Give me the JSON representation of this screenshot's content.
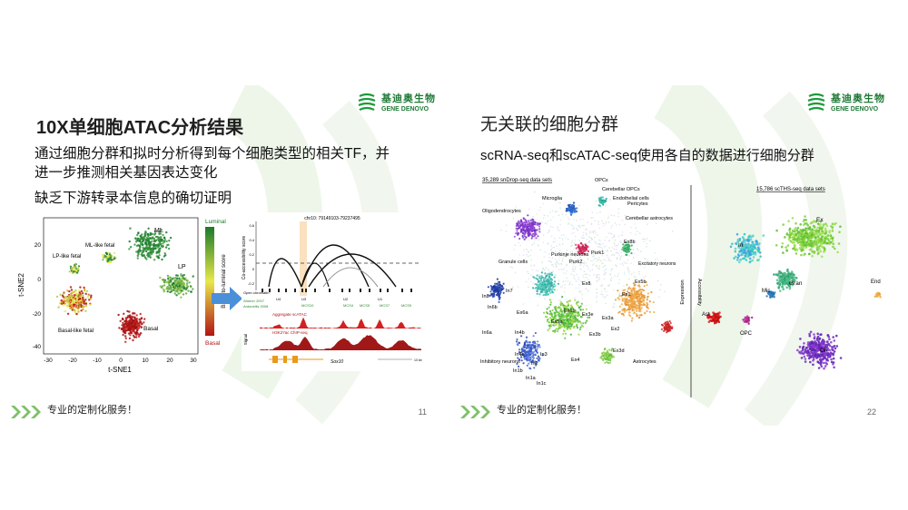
{
  "left": {
    "logo_cn": "基迪奥生物",
    "logo_en": "GENE DENOVO",
    "title": "10X单细胞ATAC分析结果",
    "line1": "通过细胞分群和拟时分析得到每个细胞类型的相关TF，并",
    "line2": "进一步推测相关基因表达变化",
    "line3": "缺乏下游转录本信息的确切证明",
    "footer": "专业的定制化服务！",
    "page": "11",
    "tsne": {
      "ylabel": "t-SNE2",
      "xlabel": "t-SNE1",
      "xticks": [
        "-30",
        "-20",
        "-10",
        "0",
        "10",
        "20",
        "30"
      ],
      "yticks": [
        "20",
        "0",
        "-20",
        "-40"
      ],
      "clusters": [
        "ML",
        "ML-like fetal",
        "LP-like fetal",
        "LP",
        "Basal-like fetal",
        "Basal"
      ],
      "colorbar_top": "Luminal",
      "colorbar_bottom": "Basal",
      "colorbar_label": "Basal-to-luminal score",
      "colors": {
        "luminal": "#1a7a2a",
        "mid": "#e8e84a",
        "basal": "#b21414"
      }
    },
    "track": {
      "coords": "chr10: 79149103-79237495",
      "ylabel": "Co-accessibility score",
      "open_label": "Open chromatin",
      "warner": "Warner 2007",
      "antonellis": "Antonellis 2008",
      "agg_label": "Aggregate scATAC",
      "h3k_label": "H3K27ac ChIP-seq",
      "signal_label": "Signal",
      "gene": "Sox10",
      "scale": "10 kb",
      "elements": [
        "U4",
        "U3",
        "U2",
        "U1"
      ],
      "mcs": [
        "MCS10",
        "MCS4",
        "MCS5",
        "MCS7",
        "MCS9"
      ],
      "yticks": [
        "0.6",
        "0.4",
        "0.2",
        "0",
        "-0.2"
      ]
    }
  },
  "right": {
    "logo_cn": "基迪奥生物",
    "logo_en": "GENE DENOVO",
    "title": "无关联的细胞分群",
    "line1": "scRNA-seq和scATAC-seq使用各自的数据进行细胞分群",
    "footer": "专业的定制化服务！",
    "page": "22",
    "drop_title": "35,289 snDrop-seq data sets",
    "thi_title": "15,786 scTHS-seq data sets",
    "axis_expr": "Expression",
    "axis_acc": "Accessibility",
    "labels_left": [
      "OPCs",
      "Microglia",
      "Cerebellar OPCs",
      "Endothelial cells",
      "Pericytes",
      "Oligodendrocytes",
      "Cerebellar astrocytes",
      "Purk1",
      "Purkinje neurons",
      "Ex8b",
      "Excitatory neurons",
      "Purk2",
      "Granule cells",
      "Ex8",
      "In8",
      "In7",
      "Ex1",
      "In6b",
      "Ex6a",
      "Ex5b",
      "Ex6b",
      "Ex5a",
      "Ex3e",
      "Ex3a",
      "In6a",
      "Ex2",
      "Ex3b",
      "In4b",
      "Ex3d",
      "Astrocytes",
      "In4a",
      "In3",
      "Ex4",
      "Inhibitory neurons",
      "In2",
      "In1b",
      "In1a",
      "In1c"
    ],
    "labels_right": [
      "Ex",
      "In",
      "End",
      "Gran",
      "Mic",
      "Ast",
      "OPC",
      "Oli"
    ]
  }
}
